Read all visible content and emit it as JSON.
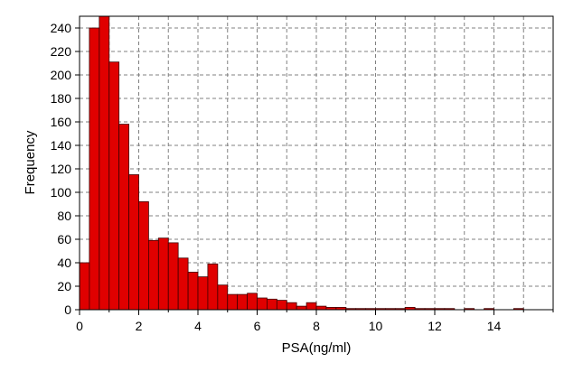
{
  "chart_data": {
    "type": "bar",
    "title": "",
    "xlabel": "PSA(ng/ml)",
    "ylabel": "Frequency",
    "xlim": [
      0,
      16
    ],
    "ylim": [
      0,
      250
    ],
    "grid": true,
    "bar_color": "#e00000",
    "bar_edge_color": "#400000",
    "bin_width": 0.333,
    "x_ticks": [
      0,
      2,
      4,
      6,
      8,
      10,
      12,
      14
    ],
    "y_ticks": [
      0,
      20,
      40,
      60,
      80,
      100,
      120,
      140,
      160,
      180,
      200,
      220,
      240
    ],
    "x_tick_labels": [
      "0",
      "2",
      "4",
      "6",
      "8",
      "10",
      "12",
      "14"
    ],
    "y_tick_labels": [
      "0",
      "20",
      "40",
      "60",
      "80",
      "100",
      "120",
      "140",
      "160",
      "180",
      "200",
      "220",
      "240"
    ],
    "bins": [
      {
        "x0": 0.0,
        "x1": 0.333,
        "value": 40
      },
      {
        "x0": 0.333,
        "x1": 0.667,
        "value": 240
      },
      {
        "x0": 0.667,
        "x1": 1.0,
        "value": 250
      },
      {
        "x0": 1.0,
        "x1": 1.333,
        "value": 211
      },
      {
        "x0": 1.333,
        "x1": 1.667,
        "value": 158
      },
      {
        "x0": 1.667,
        "x1": 2.0,
        "value": 115
      },
      {
        "x0": 2.0,
        "x1": 2.333,
        "value": 92
      },
      {
        "x0": 2.333,
        "x1": 2.667,
        "value": 59
      },
      {
        "x0": 2.667,
        "x1": 3.0,
        "value": 61
      },
      {
        "x0": 3.0,
        "x1": 3.333,
        "value": 57
      },
      {
        "x0": 3.333,
        "x1": 3.667,
        "value": 44
      },
      {
        "x0": 3.667,
        "x1": 4.0,
        "value": 32
      },
      {
        "x0": 4.0,
        "x1": 4.333,
        "value": 28
      },
      {
        "x0": 4.333,
        "x1": 4.667,
        "value": 39
      },
      {
        "x0": 4.667,
        "x1": 5.0,
        "value": 21
      },
      {
        "x0": 5.0,
        "x1": 5.333,
        "value": 13
      },
      {
        "x0": 5.333,
        "x1": 5.667,
        "value": 13
      },
      {
        "x0": 5.667,
        "x1": 6.0,
        "value": 14
      },
      {
        "x0": 6.0,
        "x1": 6.333,
        "value": 10
      },
      {
        "x0": 6.333,
        "x1": 6.667,
        "value": 9
      },
      {
        "x0": 6.667,
        "x1": 7.0,
        "value": 8
      },
      {
        "x0": 7.0,
        "x1": 7.333,
        "value": 6
      },
      {
        "x0": 7.333,
        "x1": 7.667,
        "value": 3
      },
      {
        "x0": 7.667,
        "x1": 8.0,
        "value": 6
      },
      {
        "x0": 8.0,
        "x1": 8.333,
        "value": 3
      },
      {
        "x0": 8.333,
        "x1": 8.667,
        "value": 2
      },
      {
        "x0": 8.667,
        "x1": 9.0,
        "value": 2
      },
      {
        "x0": 9.0,
        "x1": 9.333,
        "value": 1
      },
      {
        "x0": 9.333,
        "x1": 9.667,
        "value": 1
      },
      {
        "x0": 9.667,
        "x1": 10.0,
        "value": 1
      },
      {
        "x0": 10.0,
        "x1": 10.333,
        "value": 1
      },
      {
        "x0": 10.333,
        "x1": 10.667,
        "value": 1
      },
      {
        "x0": 10.667,
        "x1": 11.0,
        "value": 1
      },
      {
        "x0": 11.0,
        "x1": 11.333,
        "value": 2
      },
      {
        "x0": 11.333,
        "x1": 11.667,
        "value": 1
      },
      {
        "x0": 11.667,
        "x1": 12.0,
        "value": 1
      },
      {
        "x0": 12.0,
        "x1": 12.333,
        "value": 1
      },
      {
        "x0": 12.333,
        "x1": 12.667,
        "value": 1
      },
      {
        "x0": 13.0,
        "x1": 13.333,
        "value": 1
      },
      {
        "x0": 13.667,
        "x1": 14.0,
        "value": 1
      },
      {
        "x0": 14.667,
        "x1": 15.0,
        "value": 1
      }
    ]
  }
}
